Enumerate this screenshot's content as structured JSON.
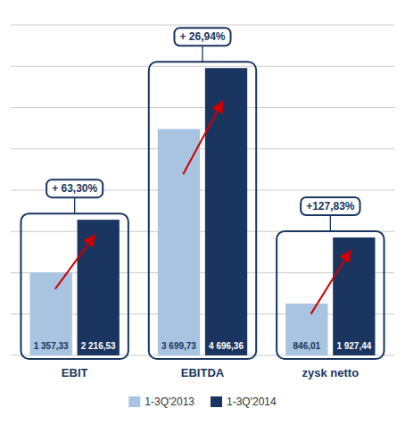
{
  "chart_data": {
    "type": "bar",
    "categories": [
      "EBIT",
      "EBITDA",
      "zysk netto"
    ],
    "series": [
      {
        "name": "1-3Q'2013",
        "color": "#a8c4e0",
        "values": [
          1357.33,
          3699.73,
          846.01
        ],
        "value_labels": [
          "1 357,33",
          "3 699,73",
          "846,01"
        ]
      },
      {
        "name": "1-3Q'2014",
        "color": "#1a3560",
        "values": [
          2216.53,
          4696.36,
          1927.44
        ],
        "value_labels": [
          "2 216,53",
          "4 696,36",
          "1 927,44"
        ]
      }
    ],
    "annotations": [
      "+ 63,30%",
      "+ 26,94%",
      "+127,83%"
    ],
    "ylim": [
      0,
      5400
    ],
    "yticks": [
      0,
      675,
      1350,
      2025,
      2700,
      3375,
      4050,
      4725,
      5400
    ],
    "grid": true,
    "tick_labels": "x",
    "legend": "bottom",
    "data_labels": true
  }
}
